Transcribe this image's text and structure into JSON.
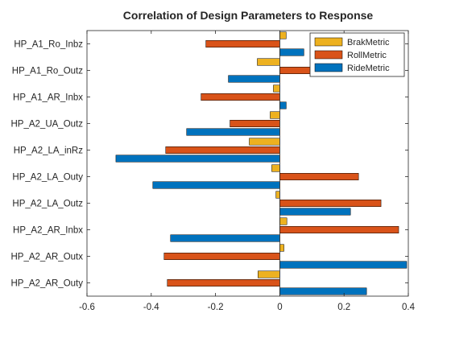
{
  "chart_data": {
    "type": "bar",
    "orientation": "horizontal",
    "title": "Correlation of Design Parameters to Response",
    "xlabel": "",
    "ylabel": "",
    "xlim": [
      -0.6,
      0.4
    ],
    "xticks": [
      "-0.6",
      "-0.4",
      "-0.2",
      "0",
      "0.2",
      "0.4"
    ],
    "categories": [
      "HP_A1_Ro_Inbz",
      "HP_A1_Ro_Outz",
      "HP_A1_AR_Inbx",
      "HP_A2_UA_Outz",
      "HP_A2_LA_inRz",
      "HP_A2_LA_Outy",
      "HP_A2_LA_Outz",
      "HP_A2_AR_Inbx",
      "HP_A2_AR_Outx",
      "HP_A2_AR_Outy"
    ],
    "series": [
      {
        "name": "BrakMetric",
        "color": "#EDB120",
        "values": [
          0.02,
          -0.07,
          -0.02,
          -0.03,
          -0.095,
          -0.025,
          -0.012,
          0.022,
          0.013,
          -0.068
        ]
      },
      {
        "name": "RollMetric",
        "color": "#D95319",
        "values": [
          -0.23,
          0.1,
          -0.245,
          -0.155,
          -0.355,
          0.245,
          0.315,
          0.37,
          -0.36,
          -0.35
        ]
      },
      {
        "name": "RideMetric",
        "color": "#0072BD",
        "values": [
          0.075,
          -0.16,
          0.02,
          -0.29,
          -0.51,
          -0.395,
          0.22,
          -0.34,
          0.395,
          0.27
        ]
      }
    ],
    "grid": false,
    "legend_position": "top-right"
  }
}
